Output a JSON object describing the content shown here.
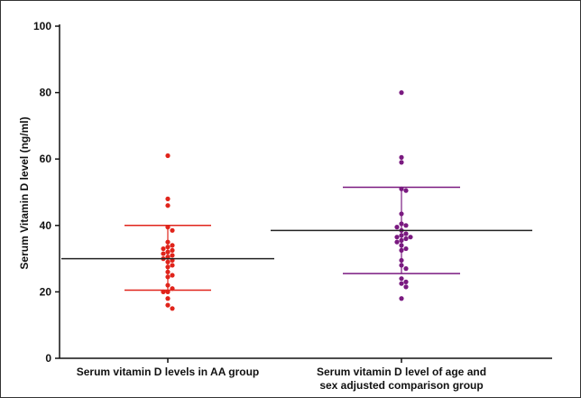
{
  "chart_data": {
    "type": "scatter",
    "subtype": "dot-plot-with-mean-and-sd",
    "ylabel": "Serum Vitamin D level (ng/ml)",
    "ylim": [
      0,
      100
    ],
    "yticks": [
      0,
      20,
      40,
      60,
      80,
      100
    ],
    "grid": false,
    "groups": [
      {
        "label_lines": [
          "Serum vitamin D levels in AA group"
        ],
        "color": "#e0241b",
        "mean": 30,
        "sd_upper": 40,
        "sd_lower": 20.5,
        "values": [
          61,
          48,
          46,
          39.5,
          38.5,
          35,
          34,
          33.5,
          33,
          32.5,
          32,
          31.5,
          31,
          30.5,
          30,
          29.5,
          29,
          28,
          27.5,
          26,
          25,
          24.5,
          22,
          21,
          20,
          20,
          18,
          16,
          15
        ]
      },
      {
        "label_lines": [
          "Serum vitamin D level of age and",
          "sex adjusted comparison group"
        ],
        "color": "#7a1a80",
        "mean": 38.5,
        "sd_upper": 51.5,
        "sd_lower": 25.5,
        "values": [
          80,
          60.5,
          59,
          51,
          50.5,
          43.5,
          40.5,
          40,
          39.5,
          38.5,
          37.5,
          37,
          36.5,
          36.5,
          36,
          35.5,
          35,
          34,
          33,
          32.5,
          29.5,
          28,
          27,
          24,
          23,
          22.5,
          21.5,
          18
        ]
      }
    ]
  }
}
